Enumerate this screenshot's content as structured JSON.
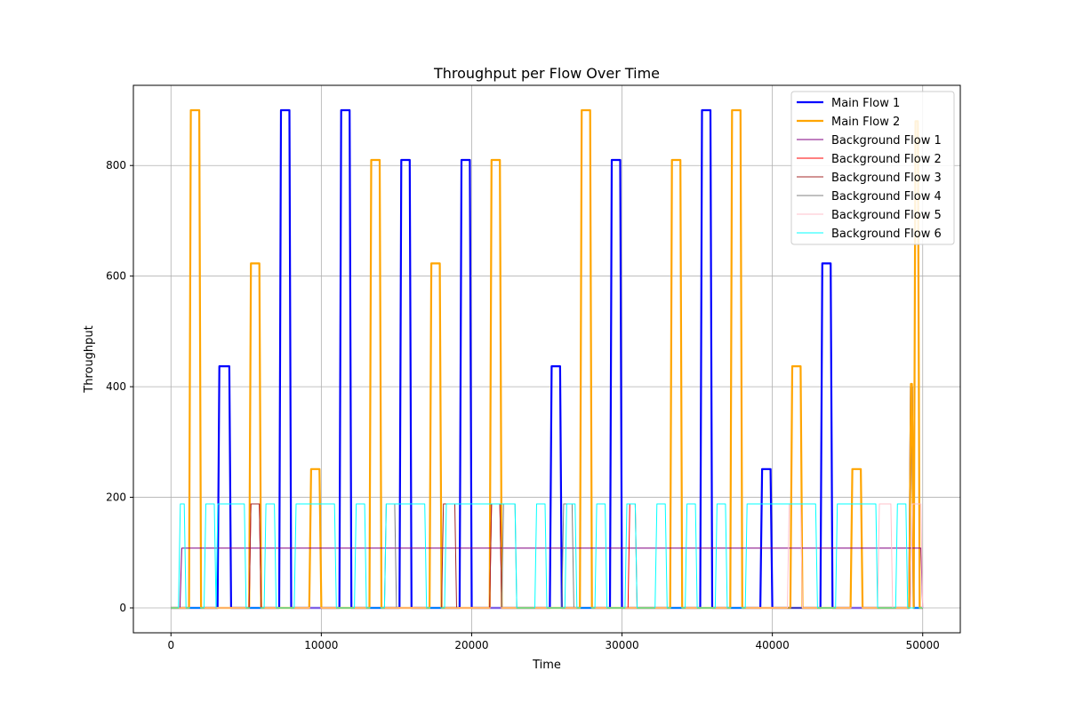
{
  "chart_data": {
    "type": "line",
    "title": "Throughput per Flow Over Time",
    "xlabel": "Time",
    "ylabel": "Throughput",
    "xlim": [
      -2500,
      52500
    ],
    "ylim": [
      -45,
      945
    ],
    "xticks": [
      0,
      10000,
      20000,
      30000,
      40000,
      50000
    ],
    "yticks": [
      0,
      200,
      400,
      600,
      800
    ],
    "xtick_labels": [
      "0",
      "10000",
      "20000",
      "30000",
      "40000",
      "50000"
    ],
    "ytick_labels": [
      "0",
      "200",
      "400",
      "600",
      "800"
    ],
    "grid": true,
    "legend_position": "top-right",
    "series": [
      {
        "name": "Main Flow 1",
        "color": "#0000ff",
        "width": 2.2,
        "pulses": [
          [
            3100,
            4000,
            437
          ],
          [
            7200,
            8000,
            900
          ],
          [
            11200,
            12000,
            900
          ],
          [
            15200,
            16000,
            810
          ],
          [
            19200,
            20000,
            810
          ],
          [
            25200,
            26000,
            437
          ],
          [
            29200,
            30000,
            810
          ],
          [
            35200,
            36000,
            900
          ],
          [
            39200,
            40000,
            251
          ],
          [
            43200,
            44000,
            623
          ],
          [
            49100,
            49400,
            400
          ]
        ]
      },
      {
        "name": "Main Flow 2",
        "color": "#ffa500",
        "width": 2.2,
        "pulses": [
          [
            1200,
            2000,
            900
          ],
          [
            5200,
            6000,
            623
          ],
          [
            9200,
            10000,
            251
          ],
          [
            13200,
            14000,
            810
          ],
          [
            17200,
            18000,
            623
          ],
          [
            21200,
            22000,
            810
          ],
          [
            27200,
            28000,
            900
          ],
          [
            33200,
            34000,
            810
          ],
          [
            37200,
            38000,
            900
          ],
          [
            41200,
            42000,
            437
          ],
          [
            45200,
            46000,
            251
          ],
          [
            49100,
            49400,
            405
          ],
          [
            49400,
            49800,
            880
          ]
        ]
      },
      {
        "name": "Background Flow 1",
        "color": "#800080",
        "width": 1,
        "pulses": [
          [
            600,
            50000,
            108
          ]
        ]
      },
      {
        "name": "Background Flow 2",
        "color": "#ff0000",
        "width": 1,
        "pulses": [
          [
            5200,
            6000,
            188
          ],
          [
            21200,
            22000,
            188
          ],
          [
            30400,
            31000,
            188
          ]
        ]
      },
      {
        "name": "Background Flow 3",
        "color": "#a52a2a",
        "width": 1,
        "pulses": [
          [
            5200,
            6000,
            188
          ],
          [
            18000,
            19000,
            188
          ],
          [
            21200,
            22000,
            188
          ]
        ]
      },
      {
        "name": "Background Flow 4",
        "color": "#808080",
        "width": 1,
        "pulses": [
          [
            14200,
            15000,
            188
          ],
          [
            22000,
            23000,
            188
          ],
          [
            26000,
            26800,
            188
          ]
        ]
      },
      {
        "name": "Background Flow 5",
        "color": "#ffc0cb",
        "width": 1,
        "pulses": [
          [
            41000,
            42000,
            188
          ],
          [
            47000,
            48000,
            188
          ],
          [
            49200,
            50000,
            188
          ]
        ]
      },
      {
        "name": "Background Flow 6",
        "color": "#00ffff",
        "width": 1,
        "pulses": [
          [
            500,
            1000,
            188
          ],
          [
            2200,
            3000,
            188
          ],
          [
            3000,
            5000,
            188
          ],
          [
            6200,
            7000,
            188
          ],
          [
            8200,
            11000,
            188
          ],
          [
            12200,
            13000,
            188
          ],
          [
            14200,
            17000,
            188
          ],
          [
            18200,
            23000,
            188
          ],
          [
            24200,
            25000,
            188
          ],
          [
            26200,
            27000,
            188
          ],
          [
            28200,
            29000,
            188
          ],
          [
            30200,
            31000,
            188
          ],
          [
            32200,
            33000,
            188
          ],
          [
            34200,
            35000,
            188
          ],
          [
            36200,
            37000,
            188
          ],
          [
            38200,
            43000,
            188
          ],
          [
            44200,
            47000,
            188
          ],
          [
            48200,
            49000,
            188
          ]
        ]
      }
    ]
  }
}
